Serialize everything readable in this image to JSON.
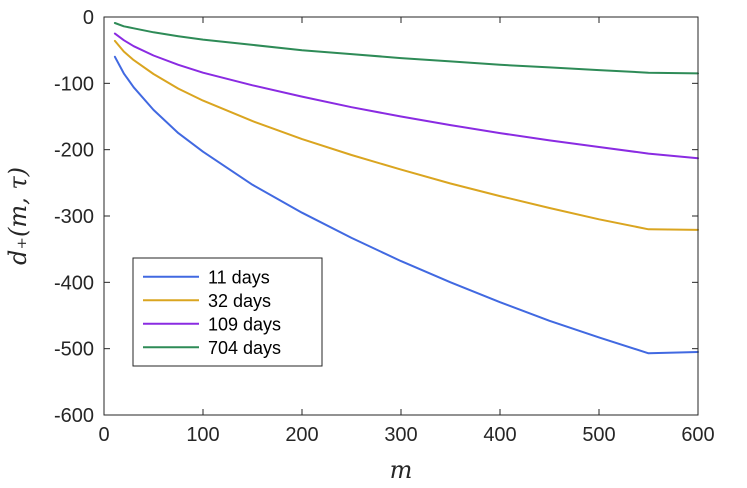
{
  "chart_data": {
    "type": "line",
    "title": "",
    "xlabel": "m",
    "ylabel": "d₊(m, τ)",
    "xlim": [
      0,
      600
    ],
    "ylim": [
      -600,
      0
    ],
    "xticks": [
      0,
      100,
      200,
      300,
      400,
      500,
      600
    ],
    "yticks": [
      0,
      -100,
      -200,
      -300,
      -400,
      -500,
      -600
    ],
    "xtick_labels": [
      "0",
      "100",
      "200",
      "300",
      "400",
      "500",
      "600"
    ],
    "ytick_labels": [
      "0",
      "-100",
      "-200",
      "-300",
      "-400",
      "-500",
      "-600"
    ],
    "grid": false,
    "legend_position": "bottom-left",
    "x": [
      11,
      20,
      30,
      50,
      75,
      100,
      150,
      200,
      250,
      300,
      350,
      400,
      450,
      500,
      550,
      600
    ],
    "series": [
      {
        "name": "11 days",
        "color": "#4169E1",
        "values": [
          -60,
          -85,
          -106,
          -140,
          -175,
          -203,
          -253,
          -295,
          -333,
          -368,
          -400,
          -430,
          -458,
          -483,
          -507,
          -505
        ]
      },
      {
        "name": "32 days",
        "color": "#DAA520",
        "values": [
          -36,
          -52,
          -65,
          -86,
          -108,
          -126,
          -157,
          -184,
          -208,
          -230,
          -251,
          -270,
          -288,
          -305,
          -320,
          -321
        ]
      },
      {
        "name": "109 days",
        "color": "#8A2BE2",
        "values": [
          -25,
          -35,
          -44,
          -58,
          -72,
          -84,
          -103,
          -120,
          -136,
          -150,
          -163,
          -175,
          -186,
          -196,
          -206,
          -213
        ]
      },
      {
        "name": "704 days",
        "color": "#2E8B57",
        "values": [
          -9,
          -14,
          -17,
          -23,
          -29,
          -34,
          -42,
          -50,
          -56,
          -62,
          -67,
          -72,
          -76,
          -80,
          -84,
          -85
        ]
      }
    ]
  }
}
